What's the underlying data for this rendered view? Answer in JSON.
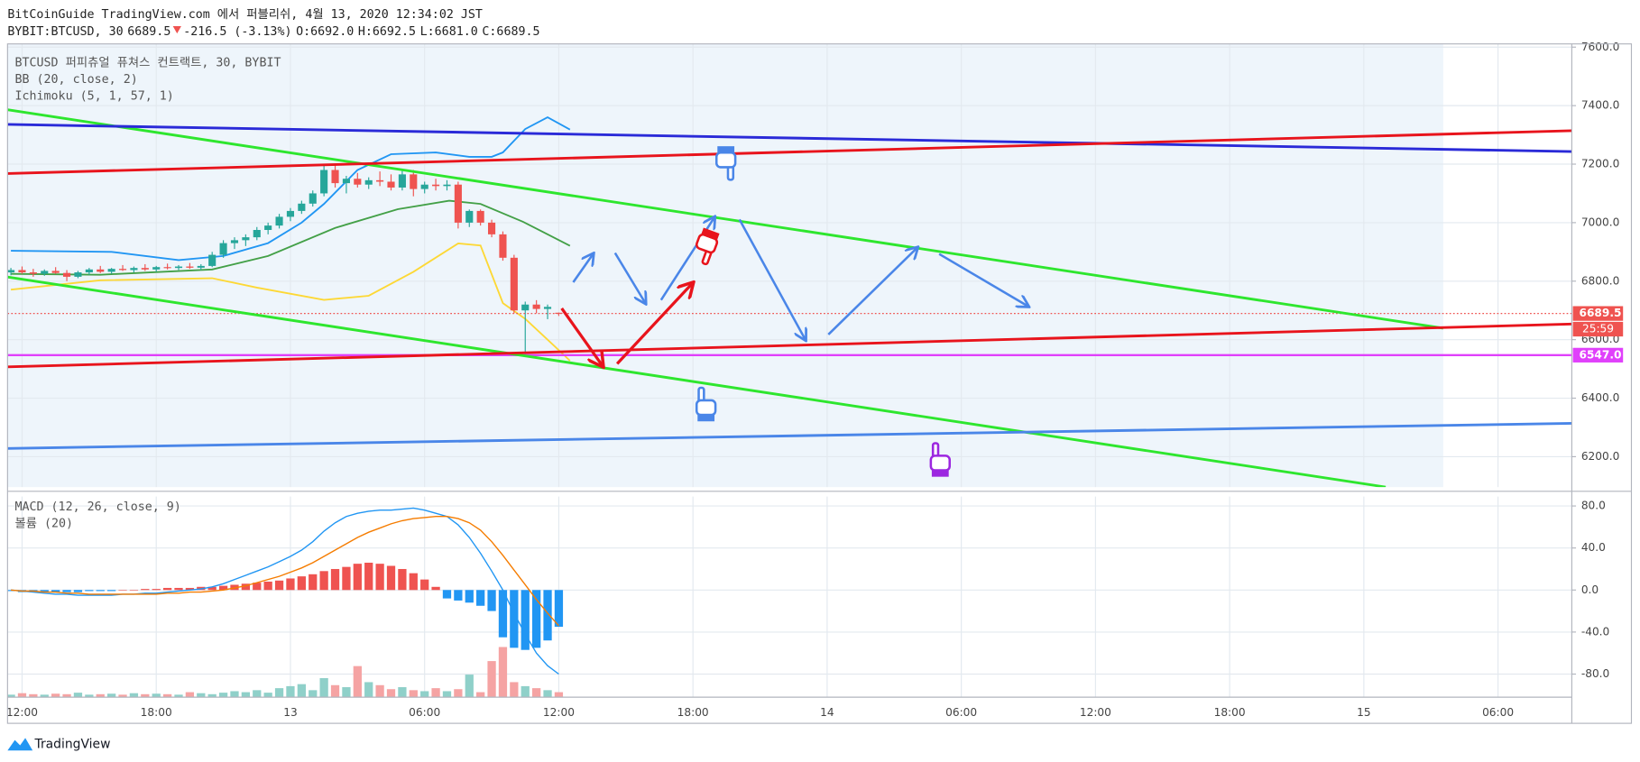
{
  "header": {
    "title": "BitCoinGuide TradingView.com 에서 퍼블리쉬, 4월 13, 2020 12:34:02 JST",
    "symbol": "BYBIT:BTCUSD, 30",
    "last": "6689.5",
    "change": "-216.5 (-3.13%)",
    "ohlc": [
      {
        "key": "O:",
        "value": "6692.0"
      },
      {
        "key": "H:",
        "value": "6692.5"
      },
      {
        "key": "L:",
        "value": "6681.0"
      },
      {
        "key": "C:",
        "value": "6689.5"
      }
    ]
  },
  "legends": {
    "main": [
      "BTCUSD 퍼피츄얼 퓨쳐스 컨트랙트, 30, BYBIT",
      "BB (20, close, 2)",
      "Ichimoku (5, 1, 57, 1)"
    ],
    "macd": [
      "MACD (12, 26, close, 9)",
      "볼륨 (20)"
    ]
  },
  "brand": "TradingView",
  "chart_data": [
    {
      "type": "candlestick",
      "x": [
        -0.5,
        0,
        0.5,
        1,
        1.5,
        2,
        2.5,
        3,
        3.5,
        4,
        4.5,
        5,
        5.5,
        6,
        6.5,
        7,
        7.5,
        8,
        8.5,
        9,
        9.5,
        10,
        10.5,
        11,
        11.5,
        12,
        12.5,
        13,
        13.5,
        14,
        14.5,
        15,
        15.5,
        16,
        16.5,
        17,
        17.5,
        18,
        18.5,
        19,
        19.5,
        20,
        20.5,
        21,
        21.5,
        22,
        22.5,
        23,
        23.5,
        24
      ],
      "open": [
        6830,
        6838,
        6830,
        6825,
        6835,
        6828,
        6815,
        6830,
        6840,
        6832,
        6842,
        6838,
        6845,
        6840,
        6848,
        6845,
        6850,
        6846,
        6852,
        6890,
        6930,
        6940,
        6950,
        6975,
        6990,
        7020,
        7040,
        7065,
        7100,
        7180,
        7135,
        7150,
        7130,
        7145,
        7140,
        7120,
        7165,
        7115,
        7130,
        7125,
        7130,
        7000,
        7040,
        7000,
        6960,
        6880,
        6700,
        6720,
        6705,
        6692
      ],
      "high": [
        6845,
        6850,
        6842,
        6840,
        6848,
        6838,
        6835,
        6845,
        6852,
        6845,
        6855,
        6850,
        6858,
        6852,
        6860,
        6855,
        6862,
        6858,
        6900,
        6940,
        6950,
        6960,
        6985,
        7000,
        7030,
        7050,
        7075,
        7110,
        7200,
        7200,
        7160,
        7170,
        7155,
        7175,
        7165,
        7180,
        7180,
        7140,
        7150,
        7145,
        7140,
        7045,
        7045,
        7010,
        6970,
        6890,
        6730,
        6735,
        6720,
        6692.5
      ],
      "low": [
        6820,
        6825,
        6815,
        6818,
        6825,
        6800,
        6810,
        6822,
        6828,
        6825,
        6835,
        6830,
        6835,
        6832,
        6840,
        6838,
        6842,
        6838,
        6848,
        6880,
        6910,
        6920,
        6940,
        6960,
        6980,
        7005,
        7030,
        7055,
        7090,
        7120,
        7100,
        7120,
        7115,
        7125,
        7110,
        7110,
        7090,
        7100,
        7110,
        7110,
        6980,
        6985,
        6990,
        6950,
        6870,
        6690,
        6550,
        6690,
        6670,
        6681
      ],
      "close": [
        6838,
        6830,
        6825,
        6835,
        6828,
        6815,
        6830,
        6840,
        6832,
        6842,
        6838,
        6845,
        6840,
        6848,
        6845,
        6850,
        6846,
        6852,
        6890,
        6930,
        6940,
        6950,
        6975,
        6990,
        7020,
        7040,
        7065,
        7100,
        7180,
        7135,
        7150,
        7130,
        7145,
        7140,
        7120,
        7165,
        7115,
        7130,
        7125,
        7130,
        7000,
        7040,
        7000,
        6960,
        6880,
        6700,
        6720,
        6705,
        6712,
        6689.5
      ],
      "up_color": "#26a69a",
      "down_color": "#ef5350",
      "series": [
        {
          "color": "#2196f3",
          "x": [
            -0.5,
            4,
            7,
            9,
            11,
            12.5,
            13.5,
            15,
            16.5,
            18.5,
            20,
            21,
            21.5,
            22.5,
            23.5,
            24.5
          ],
          "values": [
            6904,
            6900,
            6872,
            6886,
            6930,
            7000,
            7064,
            7180,
            7234,
            7240,
            7225,
            7225,
            7240,
            7320,
            7360,
            7318
          ]
        },
        {
          "color": "#43a047",
          "x": [
            -0.5,
            3.5,
            8.5,
            11,
            14,
            16.8,
            19.1,
            20.5,
            22.4,
            24.5
          ],
          "values": [
            6825,
            6822,
            6840,
            6886,
            6982,
            7046,
            7075,
            7064,
            7003,
            6921
          ]
        },
        {
          "color": "#fdd835",
          "x": [
            -0.5,
            3.5,
            8.5,
            10.5,
            13.5,
            15.5,
            17.5,
            19.5,
            20.5,
            21.5,
            22.5,
            23.5,
            24.5
          ],
          "values": [
            6771,
            6803,
            6810,
            6778,
            6736,
            6750,
            6832,
            6929,
            6922,
            6725,
            6671,
            6600,
            6528
          ]
        }
      ],
      "price_lines": [
        {
          "value": 6689.5,
          "label": "6689.5",
          "color": "#ef5350",
          "style": "dotted"
        },
        {
          "value": 6547,
          "label": "6547.0",
          "color": "#e040fb",
          "style": "solid"
        }
      ],
      "countdown": "25:59",
      "xlim": [
        -0.65,
        69.3
      ],
      "xticks": [
        {
          "value": 0,
          "label": "12:00"
        },
        {
          "value": 6,
          "label": "18:00"
        },
        {
          "value": 12,
          "label": "13"
        },
        {
          "value": 18,
          "label": "06:00"
        },
        {
          "value": 24,
          "label": "12:00"
        },
        {
          "value": 30,
          "label": "18:00"
        },
        {
          "value": 36,
          "label": "14"
        },
        {
          "value": 42,
          "label": "06:00"
        },
        {
          "value": 48,
          "label": "12:00"
        },
        {
          "value": 54,
          "label": "18:00"
        },
        {
          "value": 60,
          "label": "15"
        },
        {
          "value": 66,
          "label": "06:00"
        }
      ],
      "ylim": [
        6096,
        7611
      ],
      "yticks": [
        {
          "value": 6200,
          "label": "6200.0"
        },
        {
          "value": 6400,
          "label": "6400.0"
        },
        {
          "value": 6600,
          "label": "6600.0"
        },
        {
          "value": 6800,
          "label": "6800.0"
        },
        {
          "value": 7000,
          "label": "7000.0"
        },
        {
          "value": 7200,
          "label": "7200.0"
        },
        {
          "value": 7400,
          "label": "7400.0"
        },
        {
          "value": 7600,
          "label": "7600.0"
        }
      ],
      "grid": true
    },
    {
      "type": "macd",
      "histogram": [
        -1,
        -2,
        -2,
        -2,
        -2,
        -2,
        -2,
        -1,
        -1,
        -1,
        0,
        0,
        1,
        1,
        2,
        2,
        2,
        3,
        3,
        4,
        5,
        6,
        7,
        8,
        9,
        11,
        13,
        15,
        18,
        20,
        22,
        25,
        26,
        25,
        23,
        20,
        16,
        10,
        3,
        -8,
        -10,
        -12,
        -15,
        -20,
        -45,
        -55,
        -57,
        -55,
        -48,
        -35
      ],
      "macd": [
        0,
        -1,
        -2,
        -3,
        -4,
        -4,
        -5,
        -5,
        -5,
        -5,
        -4,
        -4,
        -3,
        -3,
        -2,
        -1,
        0,
        1,
        3,
        6,
        10,
        14,
        18,
        22,
        27,
        32,
        38,
        46,
        56,
        64,
        70,
        73,
        75,
        76,
        76,
        77,
        78,
        76,
        73,
        70,
        62,
        50,
        35,
        18,
        0,
        -22,
        -42,
        -60,
        -72,
        -80
      ],
      "signal": [
        0,
        -1,
        -1,
        -2,
        -2,
        -3,
        -3,
        -4,
        -4,
        -4,
        -4,
        -4,
        -4,
        -4,
        -3,
        -3,
        -2,
        -2,
        -1,
        0,
        2,
        4,
        7,
        10,
        13,
        17,
        21,
        26,
        32,
        38,
        44,
        50,
        55,
        59,
        63,
        66,
        68,
        69,
        70,
        70,
        68,
        64,
        57,
        46,
        33,
        19,
        5,
        -9,
        -22,
        -34
      ],
      "volume": [
        5,
        8,
        6,
        5,
        7,
        6,
        9,
        5,
        6,
        7,
        5,
        8,
        6,
        7,
        6,
        5,
        10,
        8,
        6,
        9,
        12,
        10,
        14,
        9,
        18,
        22,
        26,
        14,
        38,
        24,
        20,
        62,
        30,
        24,
        16,
        20,
        14,
        12,
        18,
        12,
        16,
        45,
        10,
        72,
        100,
        30,
        22,
        18,
        14,
        10
      ],
      "macd_color": "#2196f3",
      "signal_color": "#f57c00",
      "positive_color": "#ef5350",
      "negative_color": "#2196f3",
      "volume_up_color": "#8fd0c9",
      "volume_down_color": "#f5a3a3",
      "ylim": [
        -102,
        89
      ],
      "yticks": [
        {
          "value": -80,
          "label": "-80.0"
        },
        {
          "value": -40,
          "label": "-40.0"
        },
        {
          "value": 0,
          "label": "0.0"
        },
        {
          "value": 40,
          "label": "40.0"
        },
        {
          "value": 80,
          "label": "80.0"
        }
      ],
      "grid": true
    }
  ]
}
